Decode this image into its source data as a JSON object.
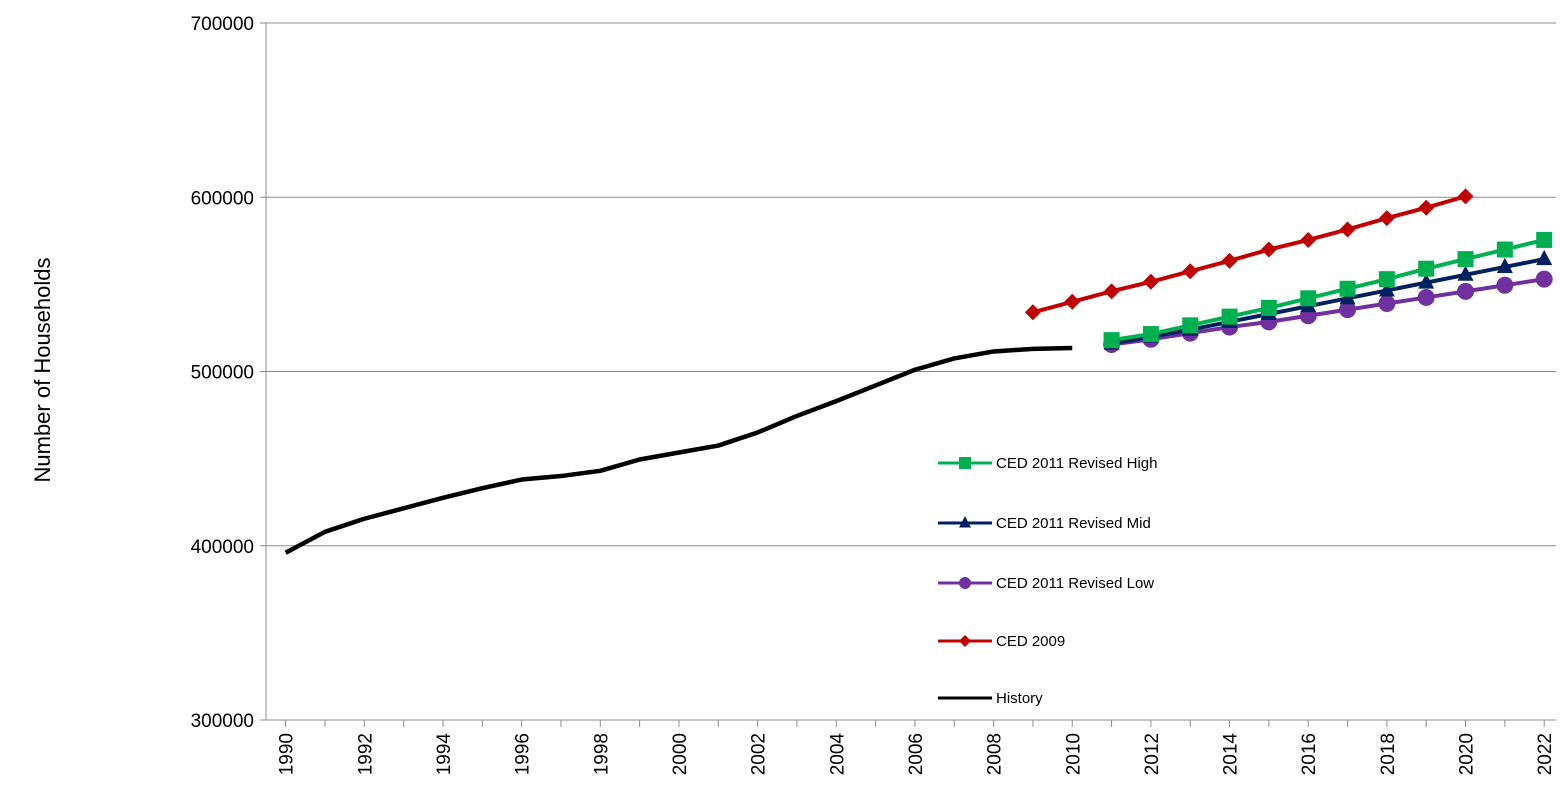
{
  "chart_data": {
    "type": "line",
    "title": "",
    "xlabel": "",
    "ylabel": "Number of Households",
    "ylim": [
      300000,
      700000
    ],
    "yticks": [
      300000,
      400000,
      500000,
      600000,
      700000
    ],
    "xlim": [
      1990,
      2022
    ],
    "xtick_labels": [
      "1990",
      "1992",
      "1994",
      "1996",
      "1998",
      "2000",
      "2002",
      "2004",
      "2006",
      "2008",
      "2010",
      "2012",
      "2014",
      "2016",
      "2018",
      "2020",
      "2022"
    ],
    "grid": "horizontal",
    "legend_position": "center-right",
    "series": [
      {
        "name": "CED 2011 Revised High",
        "color": "#00b050",
        "marker": "square",
        "x": [
          2011,
          2012,
          2013,
          2014,
          2015,
          2016,
          2017,
          2018,
          2019,
          2020,
          2021,
          2022
        ],
        "y": [
          518000,
          521500,
          526500,
          531500,
          536500,
          542000,
          547500,
          553000,
          559000,
          564500,
          570000,
          575500
        ]
      },
      {
        "name": "CED 2011 Revised Mid",
        "color": "#002060",
        "marker": "triangle",
        "x": [
          2011,
          2012,
          2013,
          2014,
          2015,
          2016,
          2017,
          2018,
          2019,
          2020,
          2021,
          2022
        ],
        "y": [
          516000,
          520000,
          524000,
          528500,
          533000,
          537500,
          542000,
          546500,
          551000,
          555500,
          560000,
          564500
        ]
      },
      {
        "name": "CED 2011 Revised Low",
        "color": "#7030a0",
        "marker": "circle",
        "x": [
          2011,
          2012,
          2013,
          2014,
          2015,
          2016,
          2017,
          2018,
          2019,
          2020,
          2021,
          2022
        ],
        "y": [
          515500,
          518500,
          522000,
          525500,
          528500,
          532000,
          535500,
          539000,
          542500,
          546000,
          549500,
          553000
        ]
      },
      {
        "name": "CED 2009",
        "color": "#c00000",
        "marker": "diamond",
        "x": [
          2009,
          2010,
          2011,
          2012,
          2013,
          2014,
          2015,
          2016,
          2017,
          2018,
          2019,
          2020
        ],
        "y": [
          534000,
          540000,
          546000,
          551500,
          557500,
          563500,
          570000,
          575500,
          581500,
          588000,
          594000,
          600500
        ]
      },
      {
        "name": "History",
        "color": "#000000",
        "marker": "none",
        "x": [
          1990,
          1991,
          1992,
          1993,
          1994,
          1995,
          1996,
          1997,
          1998,
          1999,
          2000,
          2001,
          2002,
          2003,
          2004,
          2005,
          2006,
          2007,
          2008,
          2009,
          2010
        ],
        "y": [
          396000,
          408000,
          415500,
          421500,
          427500,
          433000,
          438000,
          440000,
          443000,
          449500,
          453500,
          457500,
          465000,
          474500,
          483000,
          492000,
          501000,
          507500,
          511500,
          513000,
          513500
        ]
      }
    ]
  }
}
